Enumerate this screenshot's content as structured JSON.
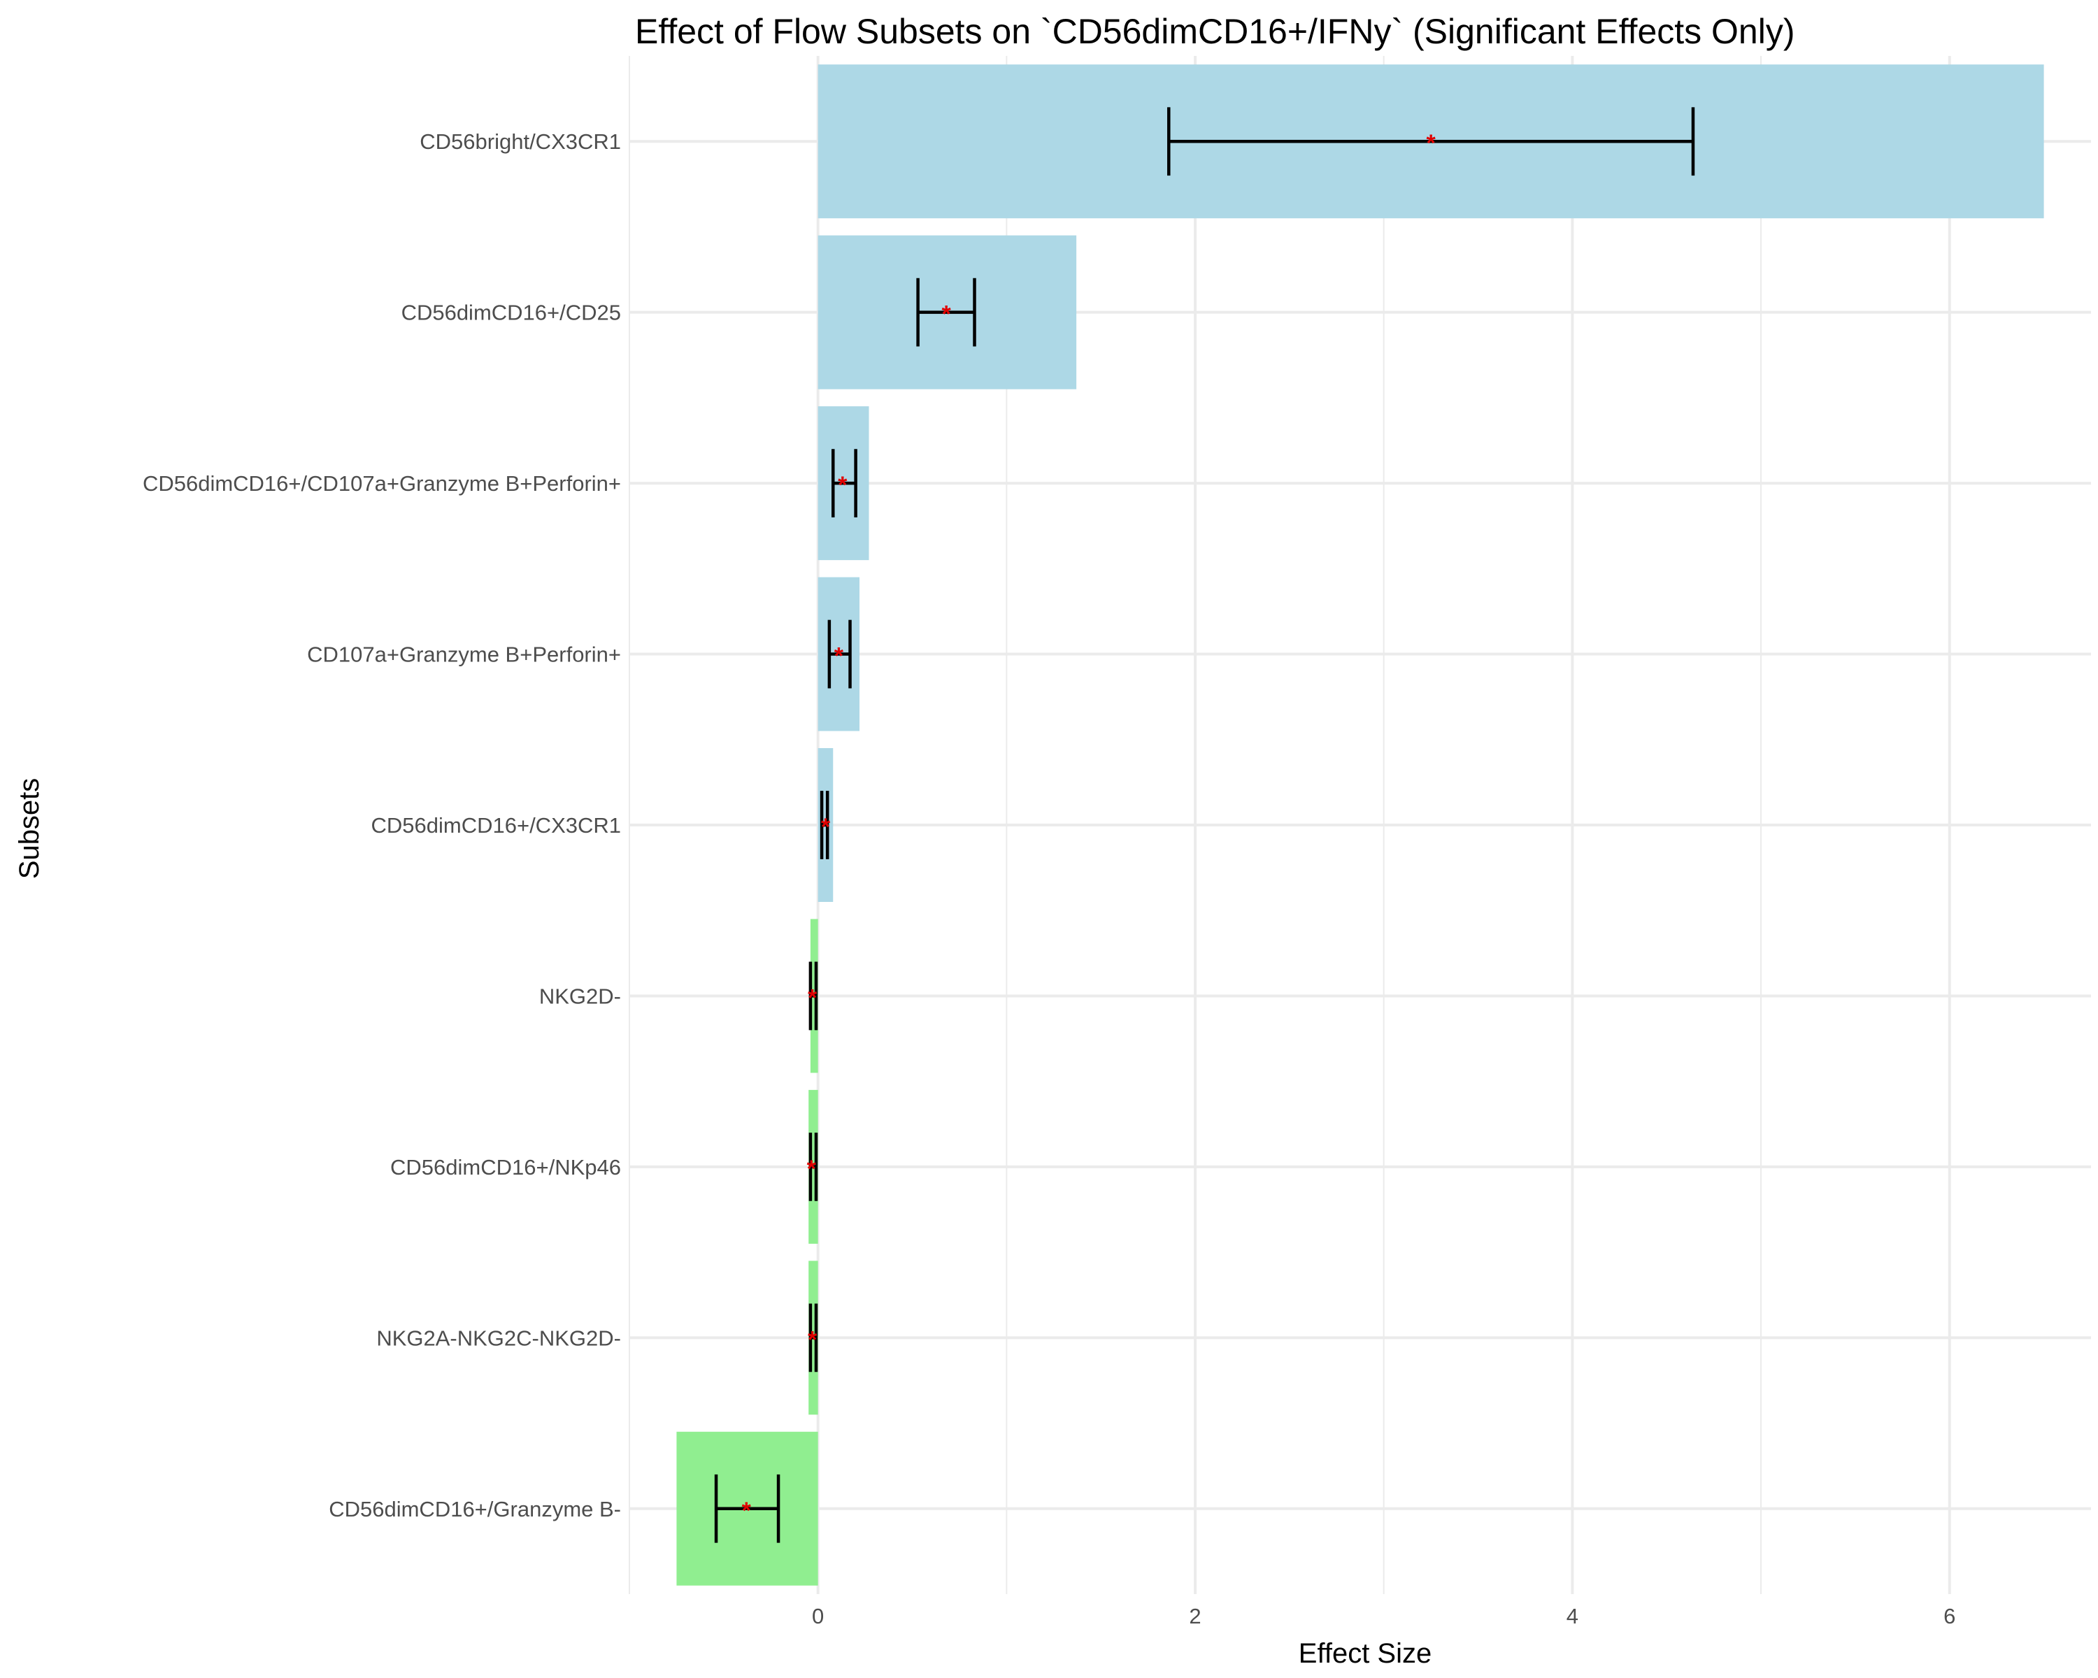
{
  "chart_data": {
    "type": "bar",
    "orientation": "horizontal",
    "title": "Effect of Flow Subsets on `CD56dimCD16+/IFNy` (Significant Effects Only)",
    "xlabel": "Effect Size",
    "ylabel": "Subsets",
    "xlim": [
      -1.0,
      6.75
    ],
    "xticks": [
      0,
      2,
      4,
      6
    ],
    "xtick_labels": [
      "0",
      "2",
      "4",
      "6"
    ],
    "grid": true,
    "legend": "none",
    "significance_marker": "*",
    "colors": {
      "positive": "#add8e6",
      "negative": "#90ee90",
      "error_bar": "#000000",
      "marker": "#e00000"
    },
    "categories": [
      "CD56bright/CX3CR1",
      "CD56dimCD16+/CD25",
      "CD56dimCD16+/CD107a+Granzyme B+Perforin+",
      "CD107a+Granzyme B+Perforin+",
      "CD56dimCD16+/CX3CR1",
      "NKG2D-",
      "CD56dimCD16+/NKp46",
      "NKG2A-NKG2C-NKG2D-",
      "CD56dimCD16+/Granzyme B-"
    ],
    "values": [
      6.5,
      1.37,
      0.27,
      0.22,
      0.08,
      -0.04,
      -0.05,
      -0.05,
      -0.75
    ],
    "estimates": [
      3.25,
      0.68,
      0.13,
      0.11,
      0.04,
      -0.03,
      -0.035,
      -0.03,
      -0.38
    ],
    "error_low": [
      1.86,
      0.53,
      0.08,
      0.06,
      0.02,
      -0.04,
      -0.04,
      -0.04,
      -0.54
    ],
    "error_high": [
      4.64,
      0.83,
      0.2,
      0.17,
      0.05,
      -0.01,
      -0.01,
      -0.01,
      -0.21
    ],
    "significant": [
      true,
      true,
      true,
      true,
      true,
      true,
      true,
      true,
      true
    ]
  }
}
